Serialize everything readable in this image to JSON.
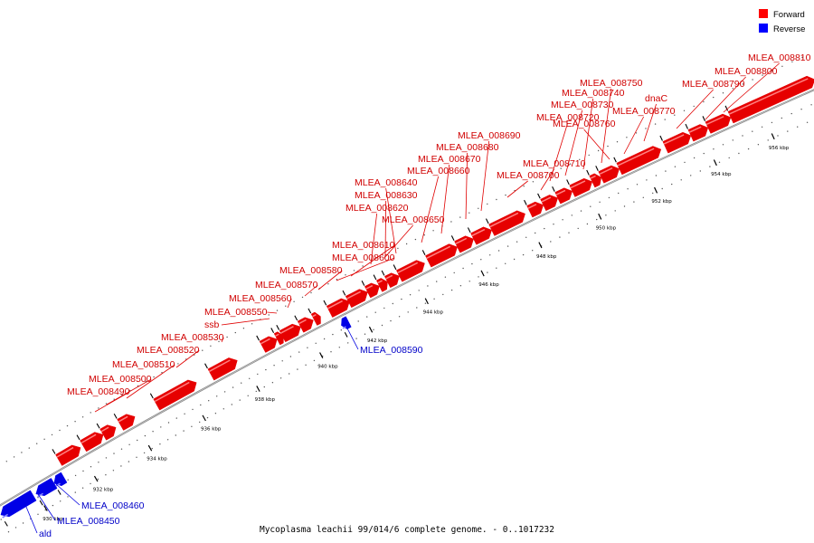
{
  "caption": "Mycoplasma leachii 99/014/6 complete genome. - 0..1017232",
  "legend": [
    {
      "label": "Forward",
      "color": "#ff0000"
    },
    {
      "label": "Reverse",
      "color": "#0000ff"
    }
  ],
  "colors": {
    "forward": "#e60000",
    "reverse": "#0000e6",
    "backbone": "#808080"
  },
  "genes": [
    {
      "name": "ald",
      "strand": "reverse"
    },
    {
      "name": "MLEA_008450",
      "strand": "reverse"
    },
    {
      "name": "MLEA_008460",
      "strand": "reverse"
    },
    {
      "name": "MLEA_008490",
      "strand": "forward"
    },
    {
      "name": "MLEA_008500",
      "strand": "forward"
    },
    {
      "name": "MLEA_008510",
      "strand": "forward"
    },
    {
      "name": "MLEA_008520",
      "strand": "forward"
    },
    {
      "name": "MLEA_008530",
      "strand": "forward"
    },
    {
      "name": "ssb",
      "strand": "forward"
    },
    {
      "name": "MLEA_008550",
      "strand": "forward"
    },
    {
      "name": "MLEA_008560",
      "strand": "forward"
    },
    {
      "name": "MLEA_008570",
      "strand": "forward"
    },
    {
      "name": "MLEA_008580",
      "strand": "forward"
    },
    {
      "name": "MLEA_008590",
      "strand": "reverse"
    },
    {
      "name": "MLEA_008600",
      "strand": "forward"
    },
    {
      "name": "MLEA_008610",
      "strand": "forward"
    },
    {
      "name": "MLEA_008650",
      "strand": "forward"
    },
    {
      "name": "MLEA_008620",
      "strand": "forward"
    },
    {
      "name": "MLEA_008630",
      "strand": "forward"
    },
    {
      "name": "MLEA_008640",
      "strand": "forward"
    },
    {
      "name": "MLEA_008660",
      "strand": "forward"
    },
    {
      "name": "MLEA_008670",
      "strand": "forward"
    },
    {
      "name": "MLEA_008680",
      "strand": "forward"
    },
    {
      "name": "MLEA_008690",
      "strand": "forward"
    },
    {
      "name": "MLEA_008700",
      "strand": "forward"
    },
    {
      "name": "MLEA_008710",
      "strand": "forward"
    },
    {
      "name": "MLEA_008720",
      "strand": "forward"
    },
    {
      "name": "MLEA_008730",
      "strand": "forward"
    },
    {
      "name": "MLEA_008740",
      "strand": "forward"
    },
    {
      "name": "MLEA_008750",
      "strand": "forward"
    },
    {
      "name": "MLEA_008760",
      "strand": "forward"
    },
    {
      "name": "MLEA_008770",
      "strand": "forward"
    },
    {
      "name": "dnaC",
      "strand": "forward"
    },
    {
      "name": "MLEA_008790",
      "strand": "forward"
    },
    {
      "name": "MLEA_008800",
      "strand": "forward"
    },
    {
      "name": "MLEA_008810",
      "strand": "forward"
    }
  ],
  "ticks": [
    "930 kbp",
    "932 kbp",
    "934 kbp",
    "936 kbp",
    "938 kbp",
    "940 kbp",
    "942 kbp",
    "944 kbp",
    "946 kbp",
    "948 kbp",
    "950 kbp",
    "952 kbp",
    "954 kbp",
    "956 kbp"
  ]
}
